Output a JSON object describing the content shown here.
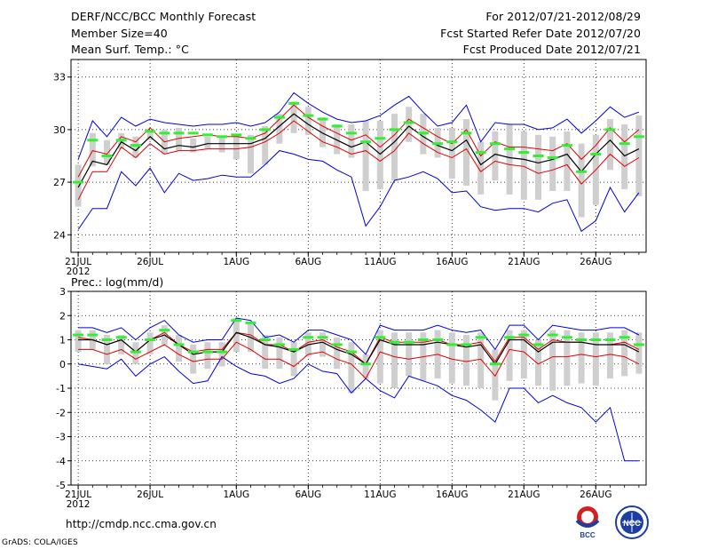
{
  "header": {
    "title": "DERF/NCC/BCC Monthly Forecast",
    "member_size": "Member Size=40",
    "variable": "Mean Surf. Temp.: °C",
    "period": "For 2012/07/21-2012/08/29",
    "start_date": "Fcst Started Refer Date 2012/07/20",
    "produced_date": "Fcst Produced Date 2012/07/21"
  },
  "footer": {
    "url": "http://cmdp.ncc.cma.gov.cn",
    "credit": "GrADS: COLA/IGES",
    "logo_left_text": "BCC",
    "logo_right_text": "NCC"
  },
  "colors": {
    "bar": "#cfcfcf",
    "mean": "#000000",
    "spread": "#e00000",
    "extreme": "#0000e0",
    "median": "#33ee33"
  },
  "chart_data": [
    {
      "type": "line",
      "title": "Mean Surf. Temp.: °C",
      "xlabel": "",
      "ylabel": "",
      "ylim": [
        23,
        34
      ],
      "yticks": [
        24,
        27,
        30,
        33
      ],
      "xtick_labels": [
        "21JUL",
        "26JUL",
        "1AUG",
        "6AUG",
        "11AUG",
        "16AUG",
        "21AUG",
        "26AUG"
      ],
      "xtick_index": [
        0,
        5,
        11,
        16,
        21,
        26,
        31,
        36
      ],
      "year_label": "2012",
      "days": 40,
      "series": [
        {
          "name": "max",
          "values": [
            28.3,
            30.5,
            29.6,
            30.7,
            30.2,
            30.6,
            30.4,
            30.3,
            30.2,
            30.3,
            30.3,
            30.4,
            30.2,
            30.4,
            31.0,
            32.1,
            31.5,
            31.0,
            30.6,
            30.4,
            30.5,
            30.8,
            31.4,
            31.9,
            31.0,
            30.2,
            30.4,
            31.4,
            29.3,
            30.4,
            30.3,
            30.3,
            30.0,
            30.1,
            30.6,
            29.8,
            30.5,
            31.3,
            30.7,
            31.0
          ]
        },
        {
          "name": "upper",
          "values": [
            27.3,
            28.8,
            28.6,
            29.6,
            29.3,
            30.1,
            29.3,
            29.5,
            29.6,
            29.7,
            29.6,
            29.6,
            29.5,
            29.8,
            30.6,
            31.4,
            30.7,
            30.2,
            29.8,
            29.4,
            29.7,
            29.0,
            29.7,
            30.6,
            30.1,
            29.6,
            29.2,
            30.0,
            28.5,
            29.3,
            29.0,
            29.0,
            28.9,
            28.8,
            29.2,
            28.3,
            29.1,
            30.1,
            29.3,
            30.0
          ]
        },
        {
          "name": "mean",
          "values": [
            26.7,
            28.2,
            28.0,
            29.3,
            28.8,
            29.6,
            28.9,
            29.1,
            29.0,
            29.2,
            29.2,
            29.2,
            29.2,
            29.5,
            30.2,
            30.9,
            30.3,
            29.8,
            29.4,
            29.0,
            29.3,
            28.6,
            29.3,
            30.2,
            29.6,
            29.1,
            28.8,
            29.4,
            28.0,
            28.6,
            28.4,
            28.3,
            28.1,
            28.3,
            28.6,
            27.6,
            28.6,
            29.4,
            28.5,
            28.9
          ]
        },
        {
          "name": "lower",
          "values": [
            26.0,
            27.6,
            27.6,
            29.0,
            28.4,
            29.2,
            28.6,
            28.8,
            28.8,
            28.9,
            28.9,
            28.9,
            29.0,
            29.3,
            29.8,
            30.5,
            29.9,
            29.3,
            29.0,
            28.6,
            28.8,
            28.2,
            28.8,
            29.8,
            29.2,
            28.7,
            28.4,
            28.9,
            27.6,
            28.2,
            28.0,
            27.9,
            27.5,
            27.7,
            28.0,
            26.9,
            27.7,
            28.6,
            27.9,
            28.4
          ]
        },
        {
          "name": "min",
          "values": [
            24.3,
            25.5,
            25.5,
            27.6,
            26.8,
            27.8,
            26.4,
            27.5,
            27.1,
            27.2,
            27.4,
            27.3,
            27.3,
            28.0,
            28.8,
            28.6,
            28.3,
            28.2,
            27.7,
            27.3,
            24.5,
            25.6,
            27.1,
            27.3,
            27.6,
            27.2,
            26.4,
            26.5,
            25.6,
            25.4,
            25.5,
            25.5,
            25.3,
            25.8,
            26.0,
            24.2,
            24.8,
            26.7,
            25.3,
            26.4
          ]
        },
        {
          "name": "median",
          "values": [
            27.0,
            29.4,
            28.5,
            29.4,
            29.1,
            29.9,
            29.8,
            29.8,
            29.8,
            29.7,
            29.6,
            29.7,
            29.5,
            30.0,
            30.7,
            31.5,
            30.8,
            30.6,
            30.2,
            29.8,
            29.3,
            29.5,
            30.0,
            30.4,
            29.8,
            29.2,
            29.3,
            29.8,
            28.7,
            29.2,
            28.9,
            28.7,
            28.5,
            28.4,
            29.1,
            27.6,
            28.6,
            30.0,
            29.2,
            29.6
          ]
        },
        {
          "name": "box_top",
          "values": [
            28.0,
            29.8,
            29.4,
            29.8,
            29.6,
            29.9,
            30.0,
            30.1,
            29.5,
            29.6,
            29.6,
            29.7,
            29.7,
            30.2,
            30.9,
            31.6,
            31.3,
            30.7,
            30.3,
            30.3,
            30.5,
            30.5,
            30.9,
            31.3,
            30.9,
            30.1,
            30.1,
            30.6,
            29.3,
            29.9,
            30.3,
            29.9,
            29.7,
            29.6,
            29.9,
            29.2,
            29.7,
            30.6,
            30.3,
            30.8
          ]
        },
        {
          "name": "box_bottom",
          "values": [
            25.6,
            27.9,
            28.0,
            28.9,
            28.4,
            29.4,
            28.6,
            28.8,
            28.7,
            28.9,
            28.7,
            28.3,
            27.5,
            28.0,
            29.2,
            29.8,
            29.7,
            29.0,
            28.6,
            28.4,
            26.5,
            26.6,
            27.1,
            29.3,
            28.6,
            28.4,
            27.2,
            26.8,
            26.3,
            27.1,
            26.3,
            26.0,
            26.0,
            26.5,
            26.5,
            25.0,
            25.7,
            27.7,
            26.6,
            26.2
          ]
        }
      ]
    },
    {
      "type": "line",
      "title": "Prec.: log(mm/d)",
      "xlabel": "",
      "ylabel": "",
      "ylim": [
        -5,
        3
      ],
      "yticks": [
        -5,
        -4,
        -3,
        -2,
        -1,
        0,
        1,
        2,
        3
      ],
      "xtick_labels": [
        "21JUL",
        "26JUL",
        "1AUG",
        "6AUG",
        "11AUG",
        "16AUG",
        "21AUG",
        "26AUG"
      ],
      "xtick_index": [
        0,
        5,
        11,
        16,
        21,
        26,
        31,
        36
      ],
      "year_label": "2012",
      "days": 40,
      "series": [
        {
          "name": "max",
          "values": [
            1.5,
            1.5,
            1.3,
            1.5,
            1.0,
            1.5,
            1.8,
            1.2,
            0.9,
            1.0,
            1.0,
            1.9,
            1.8,
            1.1,
            1.2,
            0.9,
            1.4,
            1.4,
            1.2,
            1.0,
            0.4,
            1.6,
            1.4,
            1.4,
            1.4,
            1.6,
            1.4,
            1.3,
            1.4,
            0.6,
            1.6,
            1.6,
            1.0,
            1.6,
            1.5,
            1.4,
            1.4,
            1.5,
            1.5,
            1.2
          ]
        },
        {
          "name": "upper",
          "values": [
            1.1,
            1.0,
            0.8,
            1.0,
            0.5,
            1.0,
            1.3,
            0.8,
            0.5,
            0.6,
            0.6,
            1.3,
            1.2,
            0.8,
            0.8,
            0.5,
            0.9,
            1.0,
            0.7,
            0.5,
            0.0,
            1.1,
            0.9,
            0.9,
            0.9,
            1.0,
            0.8,
            0.8,
            0.9,
            0.1,
            1.1,
            1.1,
            0.6,
            1.0,
            0.9,
            0.9,
            0.8,
            0.8,
            0.9,
            0.6
          ]
        },
        {
          "name": "mean",
          "values": [
            1.0,
            1.0,
            0.8,
            1.0,
            0.5,
            1.0,
            1.2,
            0.8,
            0.4,
            0.5,
            0.5,
            1.3,
            1.1,
            0.8,
            0.7,
            0.5,
            0.8,
            0.9,
            0.6,
            0.4,
            0.0,
            1.0,
            0.8,
            0.8,
            0.8,
            0.9,
            0.8,
            0.7,
            0.8,
            0.0,
            1.0,
            1.0,
            0.5,
            0.9,
            0.9,
            0.9,
            0.8,
            0.8,
            0.8,
            0.5
          ]
        },
        {
          "name": "lower",
          "values": [
            0.6,
            0.6,
            0.4,
            0.6,
            0.2,
            0.5,
            0.8,
            0.4,
            0.1,
            0.2,
            0.2,
            0.9,
            0.6,
            0.2,
            0.2,
            -0.1,
            0.4,
            0.5,
            0.2,
            0.0,
            -0.6,
            0.5,
            0.3,
            0.2,
            0.3,
            0.4,
            0.2,
            0.1,
            0.2,
            -0.5,
            0.6,
            0.5,
            0.0,
            0.3,
            0.3,
            0.4,
            0.3,
            0.4,
            0.3,
            0.0
          ]
        },
        {
          "name": "min",
          "values": [
            0.0,
            -0.1,
            -0.2,
            0.2,
            -0.5,
            0.0,
            0.3,
            -0.3,
            -0.8,
            -0.7,
            0.3,
            -0.1,
            -0.4,
            -0.5,
            -0.8,
            -0.6,
            0.0,
            -0.3,
            -0.4,
            -1.2,
            -0.6,
            -1.1,
            -1.4,
            -0.5,
            -0.7,
            -0.9,
            -1.3,
            -1.5,
            -1.9,
            -2.4,
            -1.0,
            -1.0,
            -1.6,
            -1.3,
            -1.6,
            -1.8,
            -2.4,
            -1.8,
            -4.0,
            -4.0
          ]
        },
        {
          "name": "median",
          "values": [
            1.2,
            1.2,
            1.0,
            1.1,
            0.5,
            1.0,
            1.4,
            0.8,
            0.5,
            0.5,
            0.5,
            1.8,
            1.7,
            1.0,
            0.8,
            0.6,
            1.1,
            1.1,
            0.8,
            0.5,
            0.0,
            1.1,
            0.9,
            0.9,
            1.0,
            1.0,
            0.8,
            0.8,
            1.1,
            0.0,
            1.1,
            1.2,
            0.8,
            1.2,
            1.1,
            1.0,
            1.0,
            1.0,
            1.1,
            0.8
          ]
        },
        {
          "name": "box_top",
          "values": [
            1.4,
            1.4,
            1.2,
            1.2,
            0.9,
            1.3,
            1.6,
            1.2,
            0.8,
            0.9,
            0.9,
            1.9,
            1.7,
            1.2,
            1.1,
            0.9,
            1.3,
            1.3,
            1.1,
            0.9,
            0.4,
            1.4,
            1.3,
            1.3,
            1.3,
            1.4,
            1.3,
            1.2,
            1.3,
            0.6,
            1.4,
            1.4,
            1.0,
            1.4,
            1.4,
            1.3,
            1.3,
            1.3,
            1.4,
            1.3
          ]
        },
        {
          "name": "box_bottom",
          "values": [
            0.5,
            0.6,
            0.0,
            0.4,
            0.0,
            0.4,
            0.8,
            0.1,
            -0.4,
            -0.2,
            -0.1,
            0.5,
            0.5,
            -0.2,
            -0.2,
            -0.5,
            0.3,
            0.3,
            -0.2,
            -1.2,
            -0.6,
            -0.8,
            -1.0,
            -0.5,
            -0.7,
            -0.6,
            -0.8,
            -0.9,
            -1.0,
            -1.5,
            -0.7,
            -0.6,
            -0.9,
            -1.1,
            -0.9,
            -0.8,
            -0.9,
            -0.6,
            -0.5,
            -0.4
          ]
        }
      ]
    }
  ]
}
